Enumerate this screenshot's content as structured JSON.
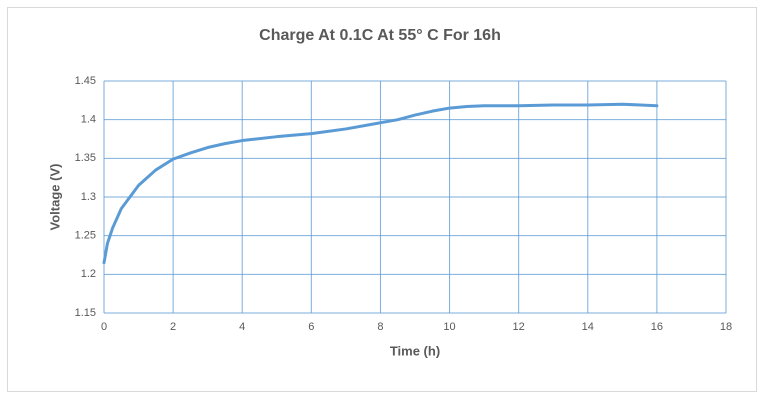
{
  "chart_data": {
    "type": "line",
    "title": "Charge At 0.1C At 55° C For 16h",
    "x_label": "Time (h)",
    "y_label": "Voltage (V)",
    "x": [
      0,
      0.1,
      0.25,
      0.5,
      0.75,
      1,
      1.25,
      1.5,
      2,
      2.5,
      3,
      3.5,
      4,
      5,
      6,
      7,
      8,
      8.5,
      9,
      9.5,
      10,
      10.5,
      11,
      12,
      13,
      14,
      15,
      16
    ],
    "values": [
      1.215,
      1.24,
      1.26,
      1.285,
      1.3,
      1.315,
      1.325,
      1.335,
      1.349,
      1.357,
      1.364,
      1.369,
      1.373,
      1.378,
      1.382,
      1.388,
      1.396,
      1.4,
      1.406,
      1.411,
      1.415,
      1.417,
      1.418,
      1.418,
      1.419,
      1.419,
      1.42,
      1.418
    ],
    "color": "#5b9bd5",
    "xlim": [
      0,
      18
    ],
    "xticks": [
      0,
      2,
      4,
      6,
      8,
      10,
      12,
      14,
      16,
      18
    ],
    "ylim": [
      1.15,
      1.45
    ],
    "yticks": [
      1.15,
      1.2,
      1.25,
      1.3,
      1.35,
      1.4,
      1.45
    ],
    "grid": true
  }
}
